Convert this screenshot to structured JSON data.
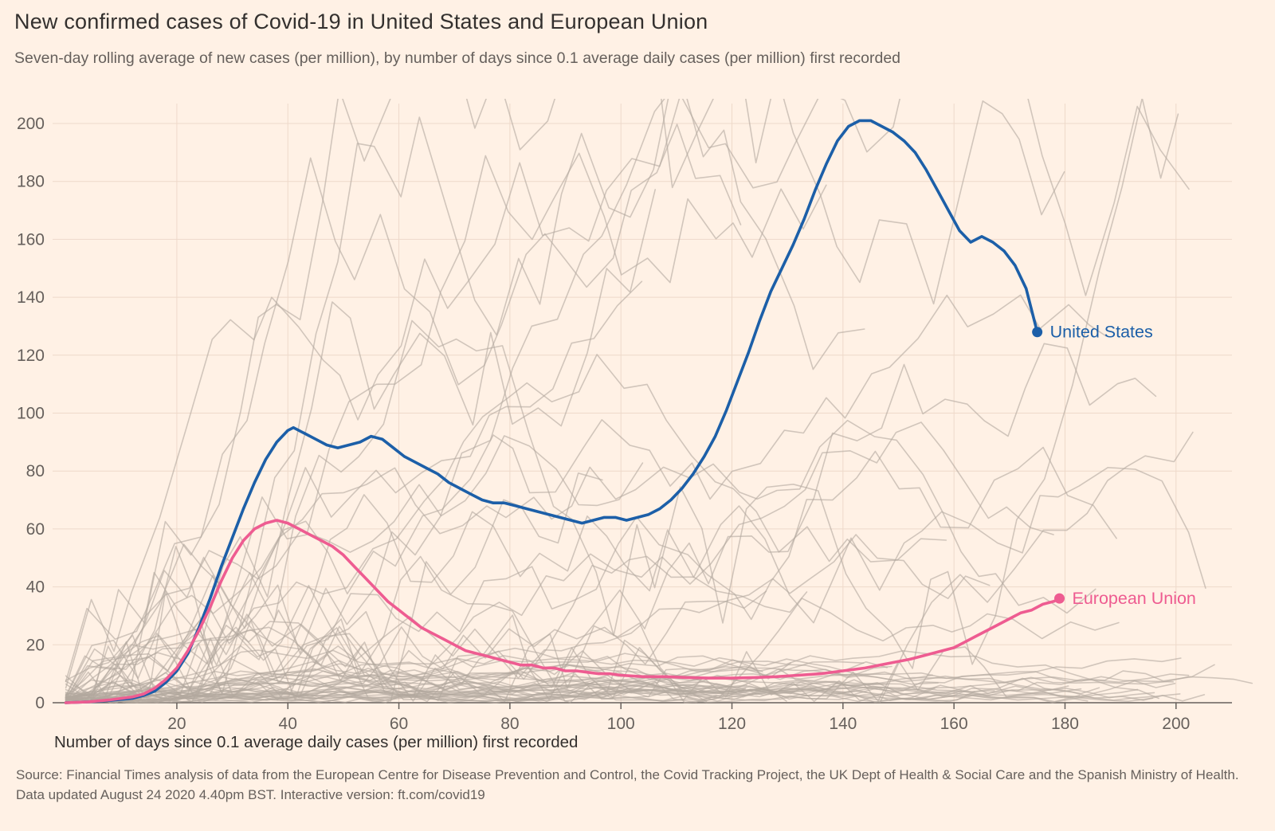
{
  "header": {
    "title": "New confirmed cases of Covid-19 in United States and European Union",
    "subtitle": "Seven-day rolling average of new cases (per million), by number of days since 0.1 average daily cases (per million) first recorded"
  },
  "footer": {
    "source": "Source: Financial Times analysis of data from the European Centre for Disease Prevention and Control, the Covid Tracking Project, the UK Dept of Health & Social Care and the Spanish Ministry of Health.",
    "updated": "Data updated August 24 2020 4.40pm BST. Interactive version: ft.com/covid19"
  },
  "chart_data": {
    "type": "line",
    "title": "New confirmed cases of Covid-19 in United States and European Union",
    "subtitle": "Seven-day rolling average of new cases (per million), by number of days since 0.1 average daily cases (per million) first recorded",
    "xlabel": "Number of days since 0.1 average daily cases (per million) first recorded",
    "ylabel": "",
    "xlim": [
      0,
      212
    ],
    "ylim": [
      0,
      200
    ],
    "x_ticks": [
      20,
      40,
      60,
      80,
      100,
      120,
      140,
      160,
      180,
      200
    ],
    "y_ticks": [
      0,
      20,
      40,
      60,
      80,
      100,
      120,
      140,
      160,
      180,
      200
    ],
    "grid": true,
    "colors": {
      "us": "#1c5fa8",
      "eu": "#ee5c91",
      "background_lines": "#b3a89f",
      "grid": "#eed9ca",
      "axis": "#66605c",
      "page_background": "#fff1e5",
      "tick_text": "#66605c"
    },
    "series": [
      {
        "name": "United States",
        "color_key": "us",
        "points": [
          [
            0,
            0
          ],
          [
            4,
            0.3
          ],
          [
            8,
            0.8
          ],
          [
            12,
            1.5
          ],
          [
            14,
            2.5
          ],
          [
            16,
            4
          ],
          [
            18,
            7
          ],
          [
            20,
            11
          ],
          [
            22,
            17
          ],
          [
            24,
            26
          ],
          [
            26,
            36
          ],
          [
            28,
            47
          ],
          [
            30,
            57
          ],
          [
            32,
            67
          ],
          [
            34,
            76
          ],
          [
            36,
            84
          ],
          [
            38,
            90
          ],
          [
            40,
            94
          ],
          [
            41,
            95
          ],
          [
            43,
            93
          ],
          [
            45,
            91
          ],
          [
            47,
            89
          ],
          [
            49,
            88
          ],
          [
            51,
            89
          ],
          [
            53,
            90
          ],
          [
            55,
            92
          ],
          [
            57,
            91
          ],
          [
            59,
            88
          ],
          [
            61,
            85
          ],
          [
            63,
            83
          ],
          [
            65,
            81
          ],
          [
            67,
            79
          ],
          [
            69,
            76
          ],
          [
            71,
            74
          ],
          [
            73,
            72
          ],
          [
            75,
            70
          ],
          [
            77,
            69
          ],
          [
            79,
            69
          ],
          [
            81,
            68
          ],
          [
            83,
            67
          ],
          [
            85,
            66
          ],
          [
            87,
            65
          ],
          [
            89,
            64
          ],
          [
            91,
            63
          ],
          [
            93,
            62
          ],
          [
            95,
            63
          ],
          [
            97,
            64
          ],
          [
            99,
            64
          ],
          [
            101,
            63
          ],
          [
            103,
            64
          ],
          [
            105,
            65
          ],
          [
            107,
            67
          ],
          [
            109,
            70
          ],
          [
            111,
            74
          ],
          [
            113,
            79
          ],
          [
            115,
            85
          ],
          [
            117,
            92
          ],
          [
            119,
            101
          ],
          [
            121,
            111
          ],
          [
            123,
            121
          ],
          [
            125,
            132
          ],
          [
            127,
            142
          ],
          [
            129,
            150
          ],
          [
            131,
            158
          ],
          [
            133,
            167
          ],
          [
            135,
            177
          ],
          [
            137,
            186
          ],
          [
            139,
            194
          ],
          [
            141,
            199
          ],
          [
            143,
            201
          ],
          [
            145,
            201
          ],
          [
            147,
            199
          ],
          [
            149,
            197
          ],
          [
            151,
            194
          ],
          [
            153,
            190
          ],
          [
            155,
            184
          ],
          [
            157,
            177
          ],
          [
            159,
            170
          ],
          [
            161,
            163
          ],
          [
            163,
            159
          ],
          [
            165,
            161
          ],
          [
            167,
            159
          ],
          [
            169,
            156
          ],
          [
            171,
            151
          ],
          [
            173,
            143
          ],
          [
            175,
            128
          ]
        ]
      },
      {
        "name": "European Union",
        "color_key": "eu",
        "points": [
          [
            0,
            0
          ],
          [
            4,
            0.3
          ],
          [
            8,
            1
          ],
          [
            12,
            2
          ],
          [
            14,
            3
          ],
          [
            16,
            5
          ],
          [
            18,
            8
          ],
          [
            20,
            12
          ],
          [
            22,
            18
          ],
          [
            24,
            25
          ],
          [
            26,
            33
          ],
          [
            28,
            42
          ],
          [
            30,
            50
          ],
          [
            32,
            56
          ],
          [
            34,
            60
          ],
          [
            36,
            62
          ],
          [
            38,
            63
          ],
          [
            40,
            62
          ],
          [
            42,
            60
          ],
          [
            44,
            58
          ],
          [
            46,
            56
          ],
          [
            48,
            54
          ],
          [
            50,
            51
          ],
          [
            52,
            47
          ],
          [
            54,
            43
          ],
          [
            56,
            39
          ],
          [
            58,
            35
          ],
          [
            60,
            32
          ],
          [
            62,
            29
          ],
          [
            64,
            26
          ],
          [
            66,
            24
          ],
          [
            68,
            22
          ],
          [
            70,
            20
          ],
          [
            72,
            18
          ],
          [
            74,
            17
          ],
          [
            76,
            16
          ],
          [
            78,
            15
          ],
          [
            80,
            14
          ],
          [
            82,
            13
          ],
          [
            84,
            13
          ],
          [
            86,
            12
          ],
          [
            88,
            12
          ],
          [
            90,
            11
          ],
          [
            92,
            11
          ],
          [
            94,
            10.5
          ],
          [
            96,
            10
          ],
          [
            98,
            10
          ],
          [
            100,
            9.5
          ],
          [
            104,
            9
          ],
          [
            108,
            9
          ],
          [
            112,
            8.7
          ],
          [
            116,
            8.5
          ],
          [
            120,
            8.5
          ],
          [
            124,
            8.7
          ],
          [
            128,
            9
          ],
          [
            132,
            9.5
          ],
          [
            136,
            10
          ],
          [
            140,
            11
          ],
          [
            144,
            12
          ],
          [
            148,
            13.5
          ],
          [
            152,
            15
          ],
          [
            156,
            17
          ],
          [
            160,
            19
          ],
          [
            162,
            21
          ],
          [
            164,
            23
          ],
          [
            166,
            25
          ],
          [
            168,
            27
          ],
          [
            170,
            29
          ],
          [
            172,
            31
          ],
          [
            174,
            32
          ],
          [
            176,
            34
          ],
          [
            178,
            35
          ],
          [
            179,
            36
          ]
        ]
      }
    ],
    "background_lines": {
      "note": "unlabelled grey trajectories of other countries",
      "count_low": 30,
      "count_mid": 20,
      "count_high": 8,
      "opacity": 0.6
    }
  }
}
